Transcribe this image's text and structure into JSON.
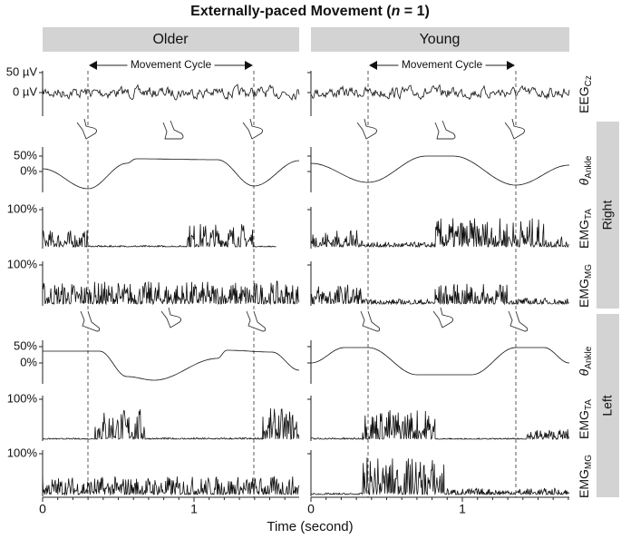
{
  "title": {
    "before": "Externally-paced Movement (",
    "italic": "n",
    "after": " = 1)"
  },
  "columns": [
    "Older",
    "Young"
  ],
  "annotation": "Movement Cycle",
  "sides": [
    "Right",
    "Left"
  ],
  "rows": {
    "eeg": {
      "label": "EEG",
      "sub": "Cz",
      "ticks": [
        "50 µV",
        "0 µV"
      ]
    },
    "angle": {
      "label": "θ",
      "sub": "Ankle",
      "ticks": [
        "50%",
        "0%"
      ]
    },
    "ta": {
      "label": "EMG",
      "sub": "TA",
      "ticks": [
        "100%"
      ]
    },
    "mg": {
      "label": "EMG",
      "sub": "MG",
      "ticks": [
        "100%"
      ]
    }
  },
  "x_axis": {
    "ticks": [
      "0",
      "1"
    ],
    "label": "Time (second)"
  }
}
